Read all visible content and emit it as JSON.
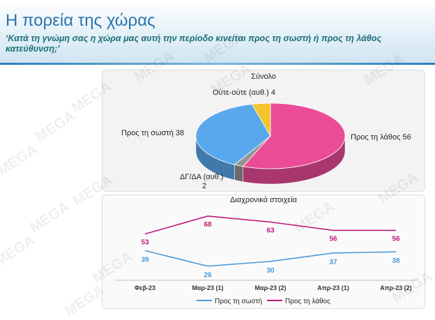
{
  "header": {
    "title": "Η πορεία της χώρας",
    "subtitle": "‘Κατά τη γνώμη σας η χώρα μας αυτή την περίοδο κινείται προς τη σωστή ή προς τη λάθος κατεύθυνση;’"
  },
  "watermark": "MEGA",
  "colors": {
    "right": "#ea4c97",
    "wrong_direction_line": "#c2187c",
    "right_direction_slice": "#5aa8ec",
    "right_direction_line": "#4b9ad9",
    "neither": "#f3c52c",
    "dk_na": "#949494",
    "header_blue": "#2b74ad",
    "subtitle_teal": "#1c6e77"
  },
  "chart_data": [
    {
      "type": "pie",
      "title": "Σύνολο",
      "three_d": true,
      "slices": [
        {
          "label": "Προς τη λάθος",
          "value": 56,
          "display": "Προς τη λάθος 56"
        },
        {
          "label": "ΔΓ/ΔΑ (αυθ.)",
          "value": 2,
          "display_line1": "ΔΓ/ΔΑ (αυθ.)",
          "display_line2": "2"
        },
        {
          "label": "Προς τη σωστή",
          "value": 38,
          "display": "Προς τη σωστή 38"
        },
        {
          "label": "Ούτε-ούτε (αυθ.)",
          "value": 4,
          "display": "Ούτε-ούτε (αυθ.) 4"
        }
      ]
    },
    {
      "type": "line",
      "title": "Διαχρονικά στοιχεία",
      "categories": [
        "Φεβ-23",
        "Μαρ-23 (1)",
        "Μαρ-23 (2)",
        "Απρ-23 (1)",
        "Απρ-23 (2)"
      ],
      "series": [
        {
          "name": "Προς τη σωστή",
          "values": [
            39,
            26,
            30,
            37,
            38
          ]
        },
        {
          "name": "Προς τη λάθος",
          "values": [
            53,
            68,
            63,
            56,
            56
          ]
        }
      ],
      "ylim": [
        20,
        75
      ],
      "legend": "bottom",
      "grid": false
    }
  ]
}
